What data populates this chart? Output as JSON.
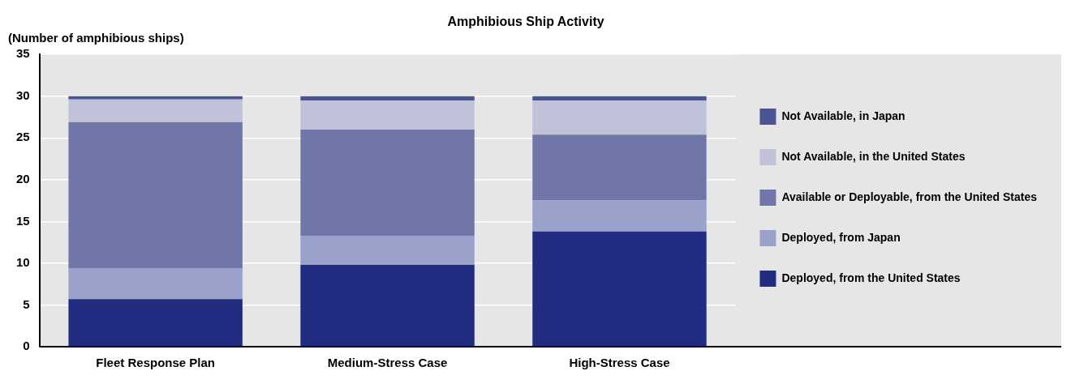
{
  "chart_data": {
    "type": "bar",
    "title": "Amphibious Ship Activity",
    "ylabel": "(Number of amphibious ships)",
    "categories": [
      "Fleet Response Plan",
      "Medium-Stress Case",
      "High-Stress Case"
    ],
    "stacked": true,
    "ylim": [
      0,
      35
    ],
    "yticks": [
      0,
      5,
      10,
      15,
      20,
      25,
      30,
      35
    ],
    "grid": "y",
    "legend": "right",
    "series": [
      {
        "name": "Deployed, from the United States",
        "color": "#212b80",
        "values": [
          5.7,
          9.8,
          13.8
        ]
      },
      {
        "name": "Deployed, from Japan",
        "color": "#9aa2cc",
        "values": [
          3.7,
          3.5,
          3.7
        ]
      },
      {
        "name": "Available or Deployable, from the United States",
        "color": "#7076a8",
        "values": [
          17.5,
          12.7,
          7.9
        ]
      },
      {
        "name": "Not Available, in the United States",
        "color": "#c0c2da",
        "values": [
          2.7,
          3.5,
          4.1
        ]
      },
      {
        "name": "Not Available, in Japan",
        "color": "#4a5492",
        "values": [
          0.4,
          0.5,
          0.5
        ]
      }
    ]
  }
}
